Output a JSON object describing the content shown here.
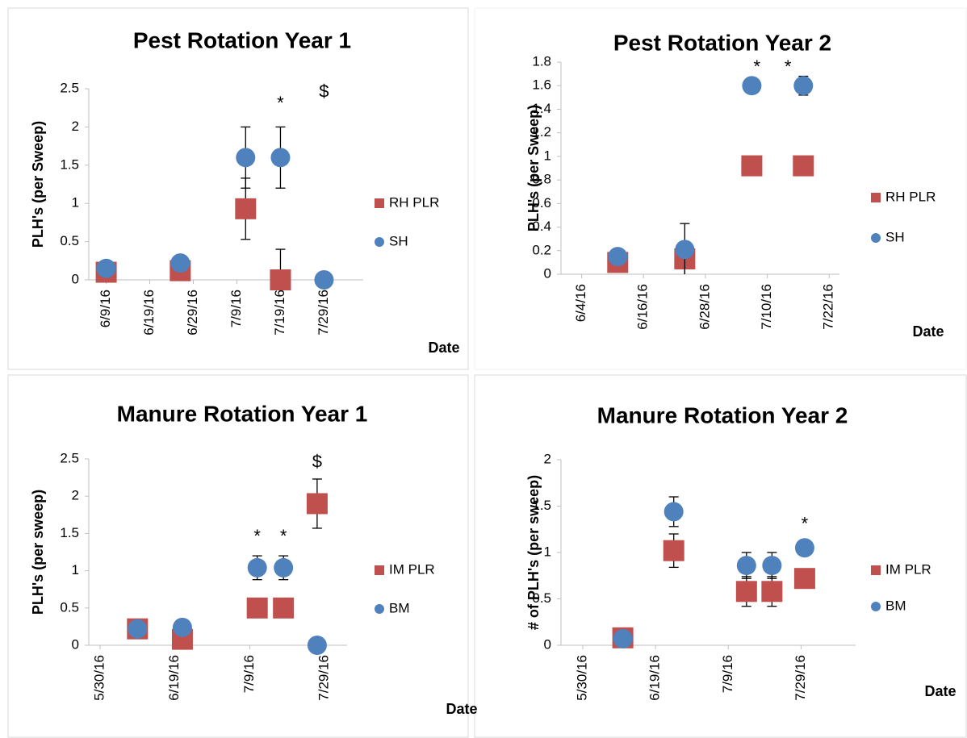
{
  "chart_data": [
    {
      "type": "scatter",
      "title": "Pest Rotation Year 1",
      "y_label": "PLH's (per Sweep)",
      "x_label": "Date",
      "x": [
        "2016-06-09",
        "2016-06-26",
        "2016-07-11",
        "2016-07-19",
        "2016-07-29"
      ],
      "series": [
        {
          "name": "RH PLR",
          "color": "#c0504d",
          "marker": "square",
          "values": [
            0.1,
            0.12,
            0.93,
            0,
            null
          ],
          "errors": [
            null,
            null,
            0.4,
            0.4,
            null
          ]
        },
        {
          "name": "SH",
          "color": "#4f81bd",
          "marker": "circle",
          "values": [
            0.15,
            0.22,
            1.6,
            1.6,
            0
          ],
          "errors": [
            null,
            null,
            0.4,
            0.4,
            null
          ]
        }
      ],
      "ylim": [
        0,
        2.5
      ],
      "yticks": [
        0,
        0.5,
        1,
        1.5,
        2,
        2.5
      ],
      "xlim": [
        "2016-06-05",
        "2016-08-07"
      ],
      "xticks": [
        {
          "value": "2016-06-09",
          "label": "6/9/16"
        },
        {
          "value": "2016-06-19",
          "label": "6/19/16"
        },
        {
          "value": "2016-06-29",
          "label": "6/29/16"
        },
        {
          "value": "2016-07-09",
          "label": "7/9/16"
        },
        {
          "value": "2016-07-19",
          "label": "7/19/16"
        },
        {
          "value": "2016-07-29",
          "label": "7/29/16"
        }
      ],
      "annotations": [
        {
          "text": "*",
          "x": "2016-07-19",
          "y": 2.3
        },
        {
          "text": "$",
          "x": "2016-07-29",
          "y": 2.45
        }
      ]
    },
    {
      "type": "scatter",
      "title": "Pest Rotation Year 2",
      "y_label": "PLH's (per Sweep)",
      "x_label": "Date",
      "x": [
        "2016-06-11",
        "2016-06-24",
        "2016-07-07",
        "2016-07-17"
      ],
      "series": [
        {
          "name": "RH PLR",
          "color": "#c0504d",
          "marker": "square",
          "values": [
            0.1,
            0.13,
            0.92,
            0.92
          ],
          "errors": [
            null,
            0.13,
            null,
            null
          ]
        },
        {
          "name": "SH",
          "color": "#4f81bd",
          "marker": "circle",
          "values": [
            0.15,
            0.21,
            1.6,
            1.6
          ],
          "errors": [
            null,
            0.22,
            null,
            0.08
          ]
        }
      ],
      "ylim": [
        0,
        1.8
      ],
      "yticks": [
        0,
        0.2,
        0.4,
        0.6,
        0.8,
        1,
        1.2,
        1.4,
        1.6,
        1.8
      ],
      "xlim": [
        "2016-05-31",
        "2016-07-24"
      ],
      "xticks": [
        {
          "value": "2016-06-04",
          "label": "6/4/16"
        },
        {
          "value": "2016-06-16",
          "label": "6/16/16"
        },
        {
          "value": "2016-06-28",
          "label": "6/28/16"
        },
        {
          "value": "2016-07-10",
          "label": "7/10/16"
        },
        {
          "value": "2016-07-22",
          "label": "7/22/16"
        }
      ],
      "annotations": [
        {
          "text": "*",
          "x": "2016-07-08",
          "y": 1.75
        },
        {
          "text": "*",
          "x": "2016-07-14",
          "y": 1.75
        }
      ]
    },
    {
      "type": "scatter",
      "title": "Manure Rotation Year 1",
      "y_label": "PLH's (per sweep)",
      "x_label": "Date",
      "x": [
        "2016-06-09",
        "2016-06-21",
        "2016-07-11",
        "2016-07-18",
        "2016-07-27"
      ],
      "series": [
        {
          "name": "IM PLR",
          "color": "#c0504d",
          "marker": "square",
          "values": [
            0.22,
            0.08,
            0.5,
            0.5,
            1.9
          ],
          "errors": [
            null,
            null,
            null,
            null,
            0.33
          ]
        },
        {
          "name": "BM",
          "color": "#4f81bd",
          "marker": "circle",
          "values": [
            0.22,
            0.24,
            1.04,
            1.04,
            0
          ],
          "errors": [
            null,
            null,
            0.16,
            0.16,
            null
          ]
        }
      ],
      "ylim": [
        0,
        2.5
      ],
      "yticks": [
        0,
        0.5,
        1,
        1.5,
        2,
        2.5
      ],
      "xlim": [
        "2016-05-27",
        "2016-08-04"
      ],
      "xticks": [
        {
          "value": "2016-05-30",
          "label": "5/30/16"
        },
        {
          "value": "2016-06-19",
          "label": "6/19/16"
        },
        {
          "value": "2016-07-09",
          "label": "7/9/16"
        },
        {
          "value": "2016-07-29",
          "label": "7/29/16"
        }
      ],
      "annotations": [
        {
          "text": "*",
          "x": "2016-07-11",
          "y": 1.45
        },
        {
          "text": "*",
          "x": "2016-07-18",
          "y": 1.45
        },
        {
          "text": "$",
          "x": "2016-07-27",
          "y": 2.45
        }
      ]
    },
    {
      "type": "scatter",
      "title": "Manure Rotation Year 2",
      "y_label": "# of PLH's (per sweep)",
      "x_label": "Date",
      "x": [
        "2016-06-10",
        "2016-06-24",
        "2016-07-14",
        "2016-07-21",
        "2016-07-30"
      ],
      "series": [
        {
          "name": "IM PLR",
          "color": "#c0504d",
          "marker": "square",
          "values": [
            0.08,
            1.02,
            0.58,
            0.58,
            0.72
          ],
          "errors": [
            null,
            0.18,
            0.16,
            0.16,
            0.1
          ]
        },
        {
          "name": "BM",
          "color": "#4f81bd",
          "marker": "circle",
          "values": [
            0.07,
            1.44,
            0.86,
            0.86,
            1.05
          ],
          "errors": [
            null,
            0.16,
            0.14,
            0.14,
            null
          ]
        }
      ],
      "ylim": [
        0,
        2
      ],
      "yticks": [
        0,
        0.5,
        1,
        1.5,
        2
      ],
      "xlim": [
        "2016-05-24",
        "2016-08-13"
      ],
      "xticks": [
        {
          "value": "2016-05-30",
          "label": "5/30/16"
        },
        {
          "value": "2016-06-19",
          "label": "6/19/16"
        },
        {
          "value": "2016-07-09",
          "label": "7/9/16"
        },
        {
          "value": "2016-07-29",
          "label": "7/29/16"
        }
      ],
      "annotations": [
        {
          "text": "*",
          "x": "2016-07-30",
          "y": 1.3
        }
      ]
    }
  ]
}
